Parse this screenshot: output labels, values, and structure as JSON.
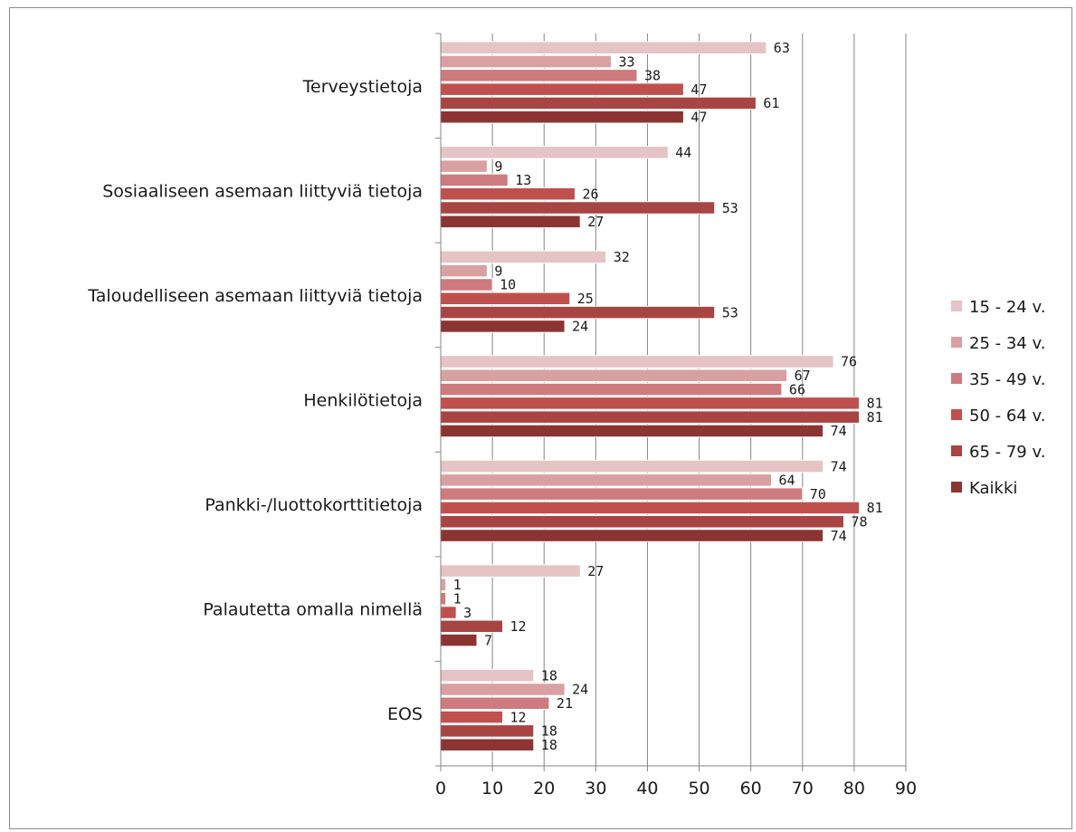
{
  "chart_data": {
    "type": "bar",
    "orientation": "horizontal",
    "title": "",
    "xlabel": "",
    "ylabel": "",
    "xlim": [
      0,
      90
    ],
    "ticks": [
      0,
      10,
      20,
      30,
      40,
      50,
      60,
      70,
      80,
      90
    ],
    "tick_labels": [
      "0",
      "10",
      "20",
      "30",
      "40",
      "50",
      "60",
      "70",
      "80",
      "90"
    ],
    "grid": true,
    "legend_position": "right",
    "categories": [
      "Terveystietoja",
      "Sosiaaliseen asemaan liittyviä tietoja",
      "Taloudelliseen asemaan liittyviä tietoja",
      "Henkilötietoja",
      "Pankki-/luottokorttitietoja",
      "Palautetta omalla nimellä",
      "EOS"
    ],
    "series": [
      {
        "name": "15 - 24 v.",
        "color": "#e6c3c4",
        "values": [
          63,
          44,
          32,
          76,
          74,
          27,
          18
        ]
      },
      {
        "name": "25 - 34 v.",
        "color": "#d9a0a2",
        "values": [
          33,
          9,
          9,
          67,
          64,
          1,
          24
        ]
      },
      {
        "name": "35 - 49 v.",
        "color": "#cd7b7e",
        "values": [
          38,
          13,
          10,
          66,
          70,
          1,
          21
        ]
      },
      {
        "name": "50 - 64 v.",
        "color": "#c0504d",
        "values": [
          47,
          26,
          25,
          81,
          81,
          3,
          12
        ]
      },
      {
        "name": "65 - 79 v.",
        "color": "#a84442",
        "values": [
          61,
          53,
          53,
          81,
          78,
          12,
          18
        ]
      },
      {
        "name": "Kaikki",
        "color": "#8b3432",
        "values": [
          47,
          27,
          24,
          74,
          74,
          7,
          18
        ]
      }
    ]
  }
}
